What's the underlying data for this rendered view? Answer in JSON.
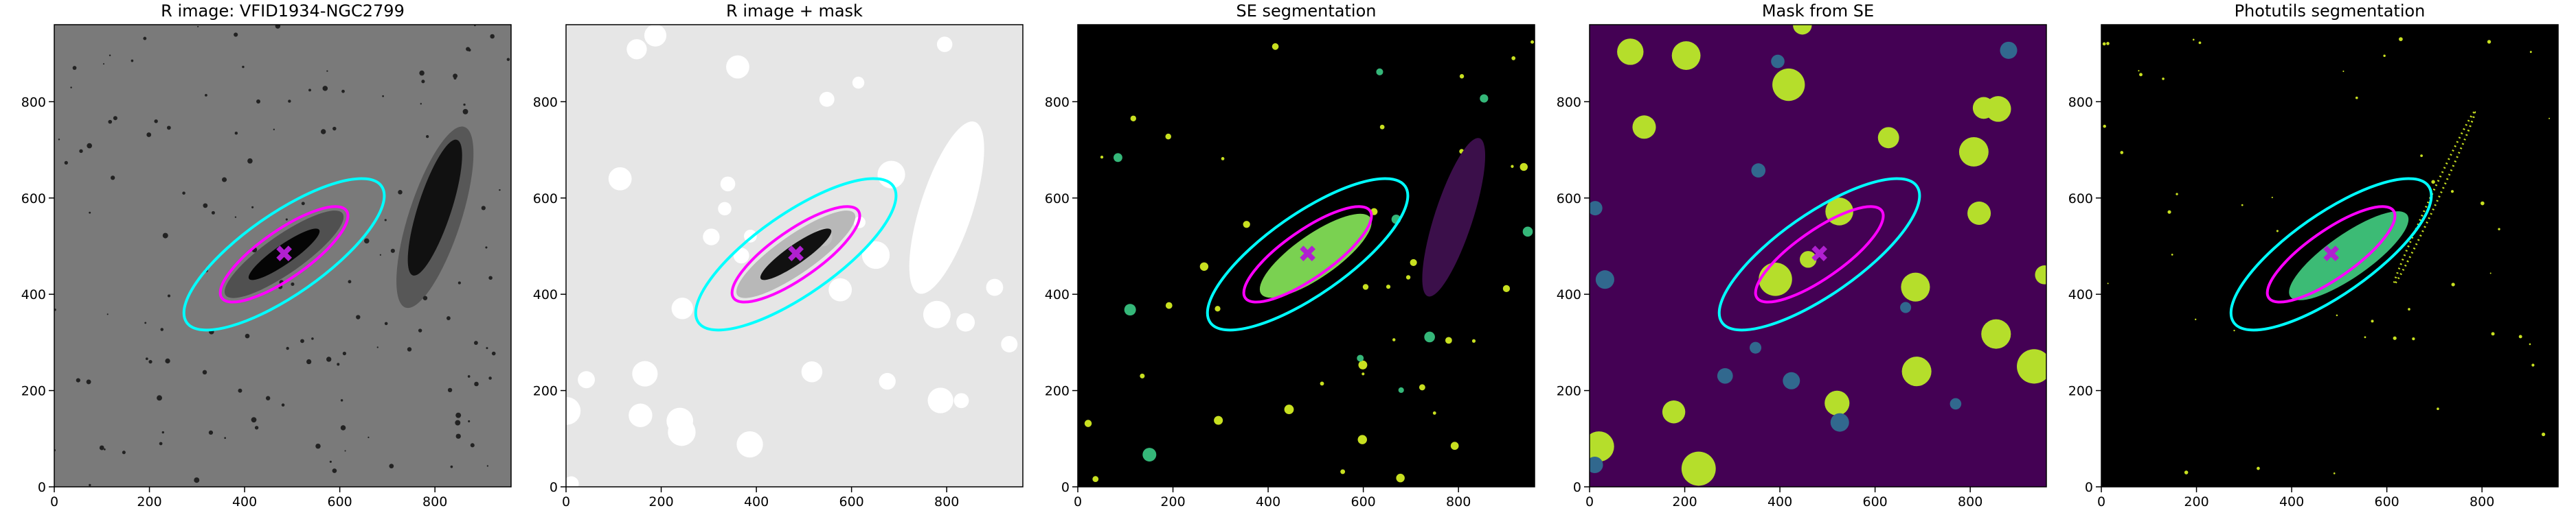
{
  "chart_data": [
    {
      "type": "image",
      "title": "R image: VFID1934-NGC2799",
      "background": "#7a7a7a",
      "xlim": [
        0,
        960
      ],
      "ylim": [
        0,
        960
      ],
      "xticks": [
        0,
        200,
        400,
        600,
        800
      ],
      "yticks": [
        0,
        200,
        400,
        600,
        800
      ]
    },
    {
      "type": "image",
      "title": "R image + mask",
      "background": "#e6e6e6",
      "xlim": [
        0,
        960
      ],
      "ylim": [
        0,
        960
      ],
      "xticks": [
        0,
        200,
        400,
        600,
        800
      ],
      "yticks": [
        0,
        200,
        400,
        600,
        800
      ]
    },
    {
      "type": "image",
      "title": "SE segmentation",
      "background": "#000000",
      "xlim": [
        0,
        960
      ],
      "ylim": [
        0,
        960
      ],
      "xticks": [
        0,
        200,
        400,
        600,
        800
      ],
      "yticks": [
        0,
        200,
        400,
        600,
        800
      ]
    },
    {
      "type": "image",
      "title": "Mask from SE",
      "background": "#440154",
      "xlim": [
        0,
        960
      ],
      "ylim": [
        0,
        960
      ],
      "xticks": [
        0,
        200,
        400,
        600,
        800
      ],
      "yticks": [
        0,
        200,
        400,
        600,
        800
      ]
    },
    {
      "type": "image",
      "title": "Photutils segmentation",
      "background": "#000000",
      "xlim": [
        0,
        960
      ],
      "ylim": [
        0,
        960
      ],
      "xticks": [
        0,
        200,
        400,
        600,
        800
      ],
      "yticks": [
        0,
        200,
        400,
        600,
        800
      ]
    }
  ]
}
